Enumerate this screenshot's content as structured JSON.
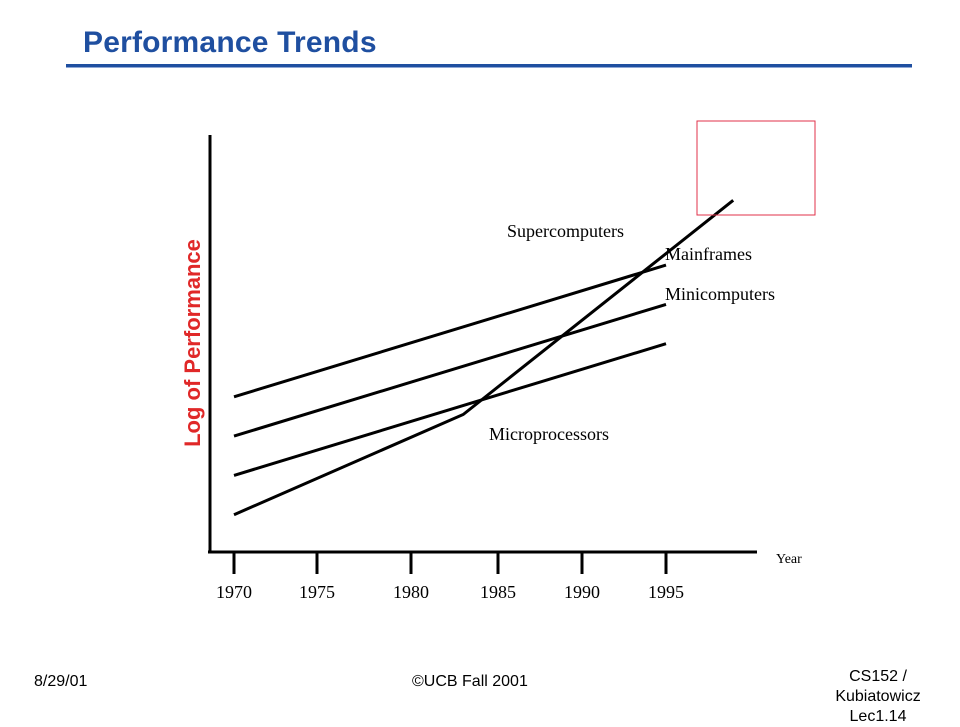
{
  "slide": {
    "title": "Performance Trends"
  },
  "chart_data": {
    "type": "line",
    "ylabel": "Log of Performance",
    "xlabel": "Year",
    "x_ticks": [
      "1970",
      "1975",
      "1980",
      "1985",
      "1990",
      "1995"
    ],
    "series": [
      {
        "name": "Supercomputers",
        "color": "#000000",
        "x": [
          1970,
          1995
        ],
        "y": [
          4.0,
          7.35
        ]
      },
      {
        "name": "Mainframes",
        "color": "#000000",
        "x": [
          1970,
          1995
        ],
        "y": [
          3.0,
          6.35
        ]
      },
      {
        "name": "Minicomputers",
        "color": "#000000",
        "x": [
          1970,
          1995
        ],
        "y": [
          2.0,
          5.35
        ]
      },
      {
        "name": "Microprocessors",
        "color": "#000000",
        "x": [
          1970,
          1983,
          1999
        ],
        "y": [
          1.0,
          3.55,
          9.0
        ]
      }
    ],
    "highlight": {
      "color": "#e0304a"
    },
    "grid": false,
    "ylabel_color": "#e02828"
  },
  "footer": {
    "date": "8/29/01",
    "copyright": "©UCB Fall 2001",
    "course": "CS152 / Kubiatowicz",
    "lecture": "Lec1.14"
  }
}
